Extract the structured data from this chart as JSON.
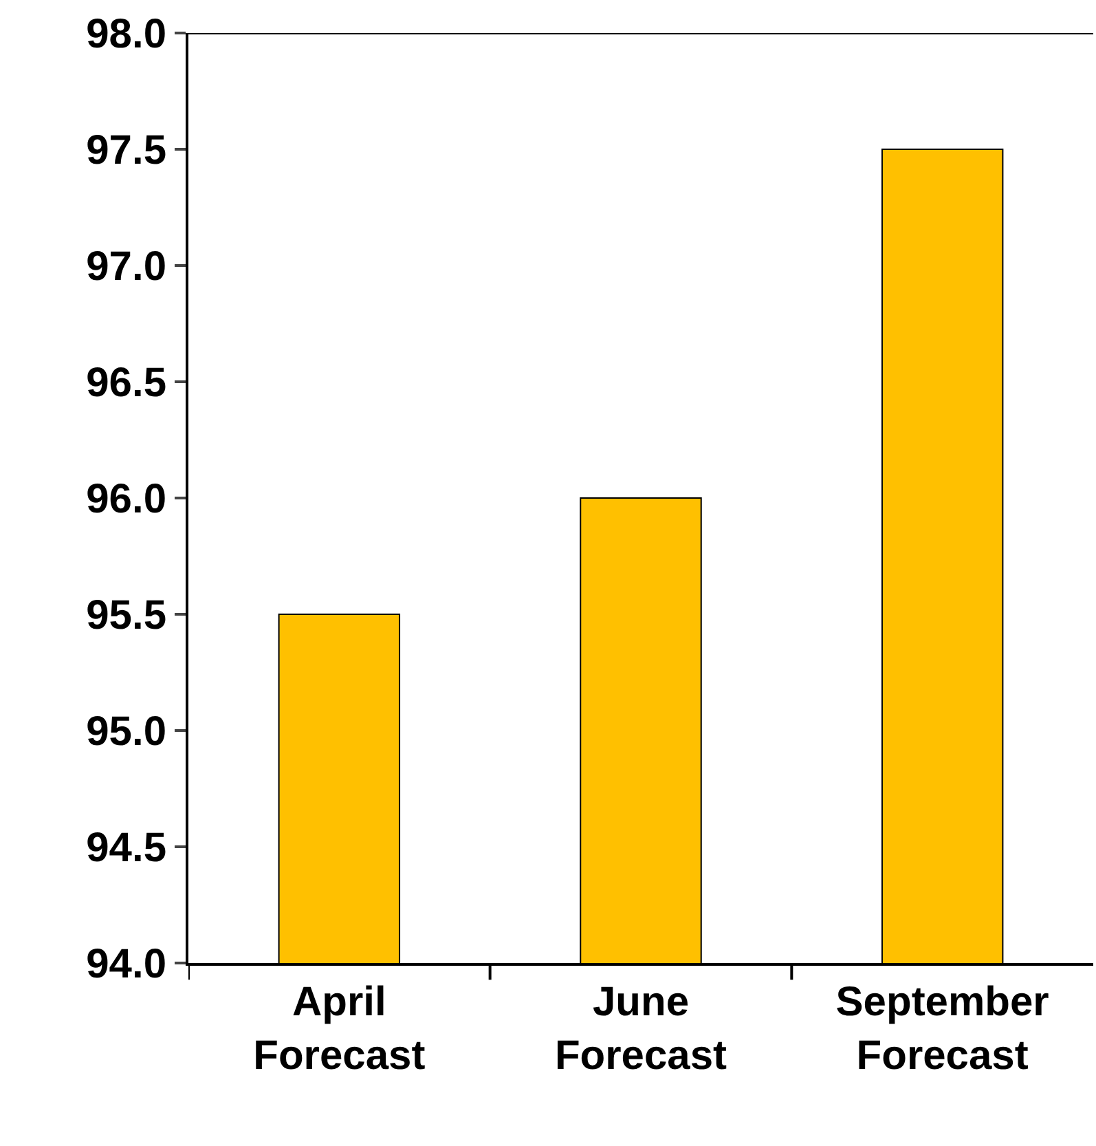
{
  "chart_data": {
    "type": "bar",
    "categories": [
      "April Forecast",
      "June Forecast",
      "September Forecast"
    ],
    "values": [
      95.5,
      96.0,
      97.5
    ],
    "color": "#ffc000",
    "ylim": [
      94,
      98
    ],
    "yticks": [
      {
        "value": 94,
        "label": "94.0"
      },
      {
        "value": 94.5,
        "label": "94.5"
      },
      {
        "value": 95,
        "label": "95.0"
      },
      {
        "value": 95.5,
        "label": "95.5"
      },
      {
        "value": 96,
        "label": "96.0"
      },
      {
        "value": 96.5,
        "label": "96.5"
      },
      {
        "value": 97,
        "label": "97.0"
      },
      {
        "value": 97.5,
        "label": "97.5"
      },
      {
        "value": 98,
        "label": "98.0"
      }
    ]
  }
}
